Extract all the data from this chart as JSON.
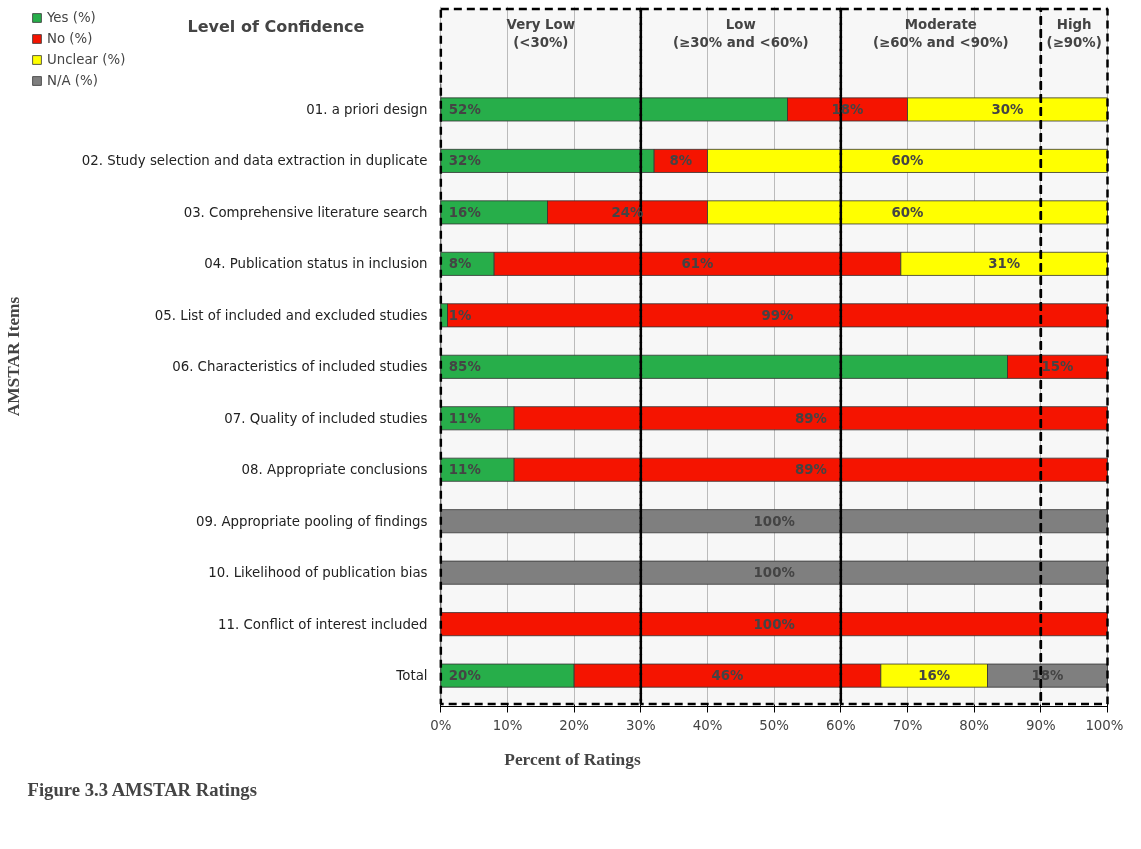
{
  "chart_data": {
    "type": "bar",
    "orientation": "horizontal",
    "stacked": true,
    "title": "Level of Confidence",
    "xlabel": "Percent of Ratings",
    "ylabel": "AMSTAR Items",
    "categories": [
      "01. a priori design",
      "02. Study selection and data extraction in duplicate",
      "03. Comprehensive literature search",
      "04. Publication status in inclusion",
      "05. List of included and excluded studies",
      "06. Characteristics of included studies",
      "07. Quality of included studies",
      "08. Appropriate conclusions",
      "09. Appropriate pooling of findings",
      "10. Likelihood of publication bias",
      "11. Conflict of interest included",
      "Total"
    ],
    "series": [
      {
        "name": "Yes (%)",
        "color": "#27ae4a",
        "values": [
          52,
          32,
          16,
          8,
          1,
          85,
          11,
          11,
          0,
          0,
          0,
          20
        ],
        "value_labels": [
          "52%",
          "32%",
          "16%",
          "8%",
          "1%",
          "85%",
          "11%",
          "11%",
          null,
          null,
          null,
          "20%"
        ]
      },
      {
        "name": "No (%)",
        "color": "#f51400",
        "values": [
          18,
          8,
          24,
          61,
          99,
          15,
          89,
          89,
          0,
          0,
          100,
          46
        ],
        "value_labels": [
          "18%",
          "8%",
          "24%",
          "61%",
          "99%",
          "15%",
          "89%",
          "89%",
          null,
          null,
          "100%",
          "46%"
        ]
      },
      {
        "name": "Unclear (%)",
        "color": "#ffff00",
        "values": [
          30,
          60,
          60,
          31,
          0,
          0,
          0,
          0,
          0,
          0,
          0,
          16
        ],
        "value_labels": [
          "30%",
          "60%",
          "60%",
          "31%",
          null,
          null,
          null,
          null,
          null,
          null,
          null,
          "16%"
        ]
      },
      {
        "name": "N/A (%)",
        "color": "#7f7f7f",
        "values": [
          0,
          0,
          0,
          0,
          0,
          0,
          0,
          0,
          100,
          100,
          0,
          18
        ],
        "value_labels": [
          null,
          null,
          null,
          null,
          null,
          null,
          null,
          null,
          "100%",
          "100%",
          null,
          "18%"
        ]
      }
    ],
    "xlim": [
      0,
      100
    ],
    "xticks": [
      {
        "value": 0,
        "label": "0%"
      },
      {
        "value": 10,
        "label": "10%"
      },
      {
        "value": 20,
        "label": "20%"
      },
      {
        "value": 30,
        "label": "30%"
      },
      {
        "value": 40,
        "label": "40%"
      },
      {
        "value": 50,
        "label": "50%"
      },
      {
        "value": 60,
        "label": "60%"
      },
      {
        "value": 70,
        "label": "70%"
      },
      {
        "value": 80,
        "label": "80%"
      },
      {
        "value": 90,
        "label": "90%"
      },
      {
        "value": 100,
        "label": "100%"
      }
    ],
    "bands": [
      {
        "axis": "x",
        "from": 0,
        "to": 30,
        "label": "Very Low\n(<30%)",
        "color": "#000000"
      },
      {
        "axis": "x",
        "from": 30,
        "to": 60,
        "label": "Low\n(≥30% and <60%)",
        "color": "#000000"
      },
      {
        "axis": "x",
        "from": 60,
        "to": 90,
        "label": "Moderate\n(≥60% and <90%)",
        "color": "#000000"
      },
      {
        "axis": "x",
        "from": 90,
        "to": 100,
        "label": "High\n(≥90%)",
        "color": "#000000"
      }
    ],
    "annotations": [
      "Figure 3.3 AMSTAR Ratings"
    ],
    "grid": "x",
    "legend": "top left"
  }
}
